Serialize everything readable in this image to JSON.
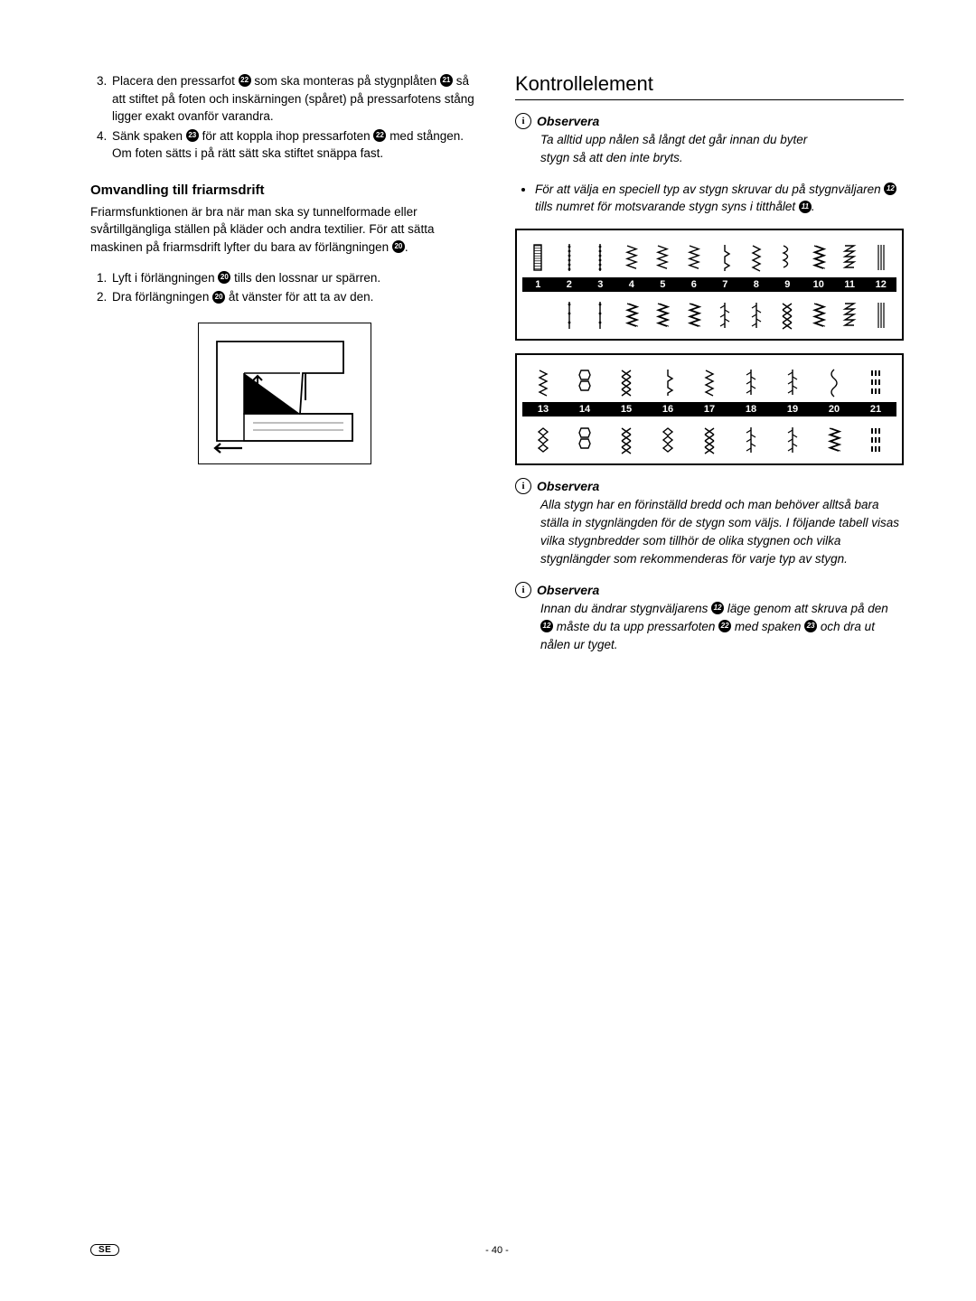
{
  "left": {
    "list1": [
      {
        "n": "3.",
        "pre": "Placera den pressarfot ",
        "ref1": "22",
        "mid1": " som ska monteras på stygnplåten ",
        "ref2": "21",
        "post": " så att stiftet på foten och inskärningen (spåret) på pressarfotens stång ligger exakt ovanför varandra."
      },
      {
        "n": "4.",
        "pre": "Sänk spaken ",
        "ref1": "23",
        "mid1": " för att koppla ihop pressarfoten ",
        "ref2": "22",
        "post": " med stången. Om foten sätts i på rätt sätt ska stiftet snäppa fast."
      }
    ],
    "section_title": "Omvandling till friarmsdrift",
    "intro_pre": "Friarmsfunktionen är bra när man ska sy tunnelformade eller svårtillgängliga ställen på kläder och andra textilier. För att sätta maskinen på friarmsdrift lyfter du bara av förlängningen ",
    "intro_ref": "20",
    "intro_post": ".",
    "list2": [
      {
        "n": "1.",
        "pre": "Lyft i förlängningen ",
        "ref": "20",
        "post": " tills den lossnar ur spärren."
      },
      {
        "n": "2.",
        "pre": "Dra förlängningen ",
        "ref": "20",
        "post": " åt vänster för att ta av den."
      }
    ]
  },
  "right": {
    "main_title": "Kontrollelement",
    "obs1_head": "Observera",
    "obs1_text": "Ta alltid upp nålen så långt det går innan du byter stygn så att den inte bryts.",
    "bullet_pre": "För att välja en speciell typ av stygn skruvar du på stygnväljaren ",
    "bullet_ref1": "12",
    "bullet_mid": " tills numret för motsvarande stygn syns i titthålet ",
    "bullet_ref2": "11",
    "bullet_post": ".",
    "nums1": [
      "1",
      "2",
      "3",
      "4",
      "5",
      "6",
      "7",
      "8",
      "9",
      "10",
      "11",
      "12"
    ],
    "nums2": [
      "13",
      "14",
      "15",
      "16",
      "17",
      "18",
      "19",
      "20",
      "21"
    ],
    "obs2_head": "Observera",
    "obs2_text": "Alla stygn har en förinställd bredd och man behöver alltså bara ställa in stygnlängden för de stygn som väljs. I följande tabell visas vilka stygnbredder som tillhör de olika stygnen och vilka stygnlängder som rekommenderas för varje typ av stygn.",
    "obs3_head": "Observera",
    "obs3_pre": "Innan du ändrar stygnväljarens ",
    "obs3_ref1": "12",
    "obs3_mid1": " läge genom att skruva på den ",
    "obs3_ref2": "12",
    "obs3_mid2": " måste du ta upp pressarfoten ",
    "obs3_ref3": "22",
    "obs3_mid3": " med spaken ",
    "obs3_ref4": "23",
    "obs3_post": " och dra ut nålen ur tyget."
  },
  "footer": {
    "lang": "SE",
    "page": "- 40 -"
  },
  "colors": {
    "text": "#000000",
    "bg": "#ffffff"
  }
}
